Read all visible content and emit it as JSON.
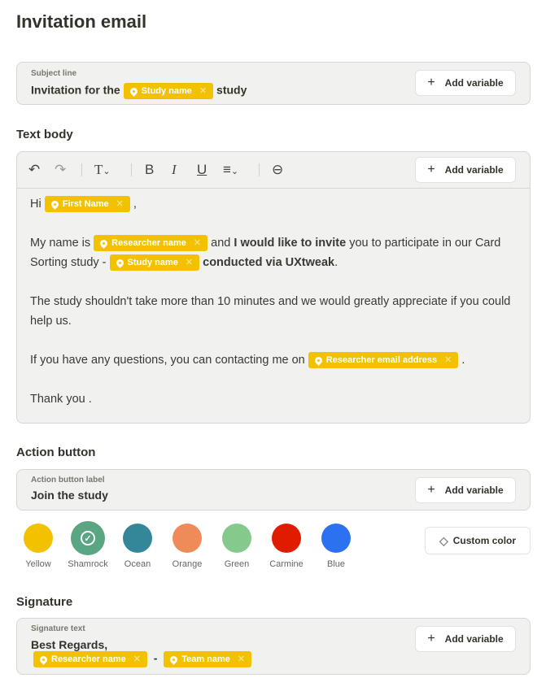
{
  "page_title": "Invitation email",
  "subject": {
    "label": "Subject line",
    "before": "Invitation for the",
    "chip": "Study name",
    "after": "study",
    "add_variable": "Add variable"
  },
  "text_body": {
    "heading": "Text body",
    "add_variable": "Add variable",
    "toolbar": [
      "undo-icon",
      "redo-icon",
      "text-style-icon",
      "bold-icon",
      "italic-icon",
      "underline-icon",
      "align-icon",
      "link-icon"
    ],
    "p1": {
      "a": "Hi",
      "chip": "First Name",
      "b": ","
    },
    "p2": {
      "a": "My name is",
      "chip1": "Researcher name",
      "b": "and",
      "bold1": "I would like to invite",
      "c": "you to participate in our Card Sorting study -",
      "chip2": "Study name",
      "bold2": "conducted via UXtweak",
      "d": "."
    },
    "p3": "The study shouldn't take more than 10 minutes and we would greatly appreciate if you could help us.",
    "p4": {
      "a": "If you have any questions, you can contacting me on",
      "chip": "Researcher email address",
      "b": "."
    },
    "p5": "Thank you ."
  },
  "action_button": {
    "heading": "Action button",
    "label": "Action button label",
    "value": "Join the study",
    "add_variable": "Add variable"
  },
  "colors": [
    {
      "name": "Yellow",
      "hex": "#f2c200"
    },
    {
      "name": "Shamrock",
      "hex": "#5aa582",
      "selected": true
    },
    {
      "name": "Ocean",
      "hex": "#338799"
    },
    {
      "name": "Orange",
      "hex": "#ef8a59"
    },
    {
      "name": "Green",
      "hex": "#85ca8c"
    },
    {
      "name": "Carmine",
      "hex": "#e01b00"
    },
    {
      "name": "Blue",
      "hex": "#2b71f0"
    }
  ],
  "custom_color": "Custom color",
  "signature": {
    "heading": "Signature",
    "label": "Signature text",
    "value": "Best Regards,",
    "chip1": "Researcher name",
    "dash": "-",
    "chip2": "Team name",
    "add_variable": "Add variable"
  },
  "chip_color": "#f2c200"
}
